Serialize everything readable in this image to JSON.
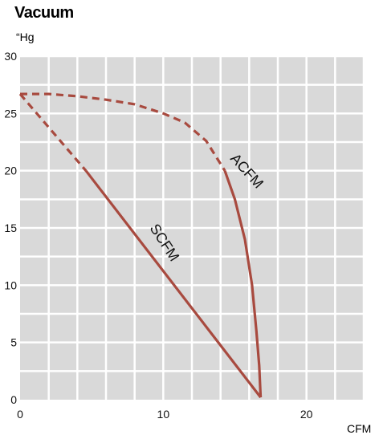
{
  "chart_data": {
    "type": "line",
    "title": "Vacuum",
    "ylabel": "“Hg",
    "xlabel": "CFM",
    "xlim": [
      0,
      24
    ],
    "ylim": [
      0,
      30
    ],
    "x_ticks": [
      0,
      10,
      20
    ],
    "y_ticks": [
      0,
      5,
      10,
      15,
      20,
      25,
      30
    ],
    "grid": true,
    "grid_x_step": 2,
    "grid_y_step": 2.5,
    "background_color": "#d9d9d9",
    "series": [
      {
        "name": "SCFM",
        "color": "#a84a3f",
        "segments": [
          {
            "style": "dashed",
            "points": [
              [
                0,
                26.7
              ],
              [
                4.6,
                20
              ]
            ]
          },
          {
            "style": "solid",
            "points": [
              [
                4.6,
                20
              ],
              [
                16.8,
                0.2
              ]
            ]
          }
        ]
      },
      {
        "name": "ACFM",
        "color": "#a84a3f",
        "segments": [
          {
            "style": "dashed",
            "points": [
              [
                0,
                26.7
              ],
              [
                2,
                26.7
              ],
              [
                4,
                26.5
              ],
              [
                6,
                26.2
              ],
              [
                8,
                25.8
              ],
              [
                10,
                25
              ],
              [
                11.5,
                24.2
              ],
              [
                13,
                22.6
              ],
              [
                14.3,
                20
              ]
            ]
          },
          {
            "style": "solid",
            "points": [
              [
                14.3,
                20
              ],
              [
                15,
                17.5
              ],
              [
                15.7,
                14
              ],
              [
                16.2,
                10
              ],
              [
                16.5,
                6
              ],
              [
                16.7,
                3
              ],
              [
                16.8,
                0.2
              ]
            ]
          }
        ]
      }
    ]
  }
}
